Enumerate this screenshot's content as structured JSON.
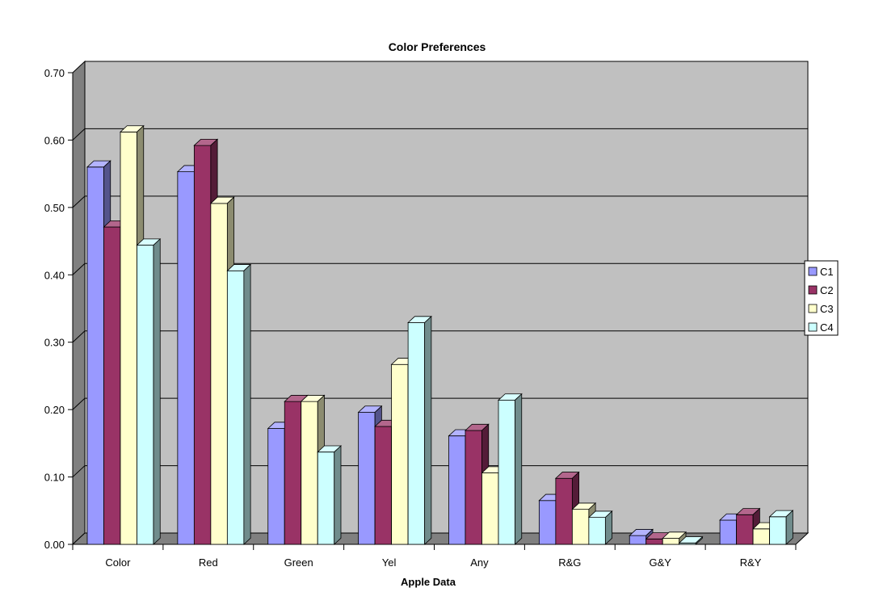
{
  "chart_data": {
    "type": "bar",
    "title": "Color Preferences",
    "xlabel": "Apple Data",
    "ylabel": "",
    "ylim": [
      0,
      0.7
    ],
    "yticks": [
      "0.00",
      "0.10",
      "0.20",
      "0.30",
      "0.40",
      "0.50",
      "0.60",
      "0.70"
    ],
    "categories": [
      "Color",
      "Red",
      "Green",
      "Yel",
      "Any",
      "R&G",
      "G&Y",
      "R&Y"
    ],
    "series": [
      {
        "name": "C1",
        "values": [
          0.56,
          0.553,
          0.172,
          0.196,
          0.161,
          0.065,
          0.013,
          0.036
        ]
      },
      {
        "name": "C2",
        "values": [
          0.471,
          0.592,
          0.212,
          0.175,
          0.169,
          0.098,
          0.008,
          0.044
        ]
      },
      {
        "name": "C3",
        "values": [
          0.612,
          0.506,
          0.212,
          0.267,
          0.106,
          0.052,
          0.009,
          0.023
        ]
      },
      {
        "name": "C4",
        "values": [
          0.444,
          0.406,
          0.137,
          0.329,
          0.214,
          0.04,
          0.002,
          0.041
        ]
      }
    ],
    "legend_position": "right",
    "grid": true,
    "style": "3d-clustered-column"
  },
  "colors": {
    "C1": "#9999ff",
    "C2": "#993366",
    "C3": "#ffffcc",
    "C4": "#ccffff",
    "plot_background": "#c0c0c0",
    "floor": "#808080"
  }
}
